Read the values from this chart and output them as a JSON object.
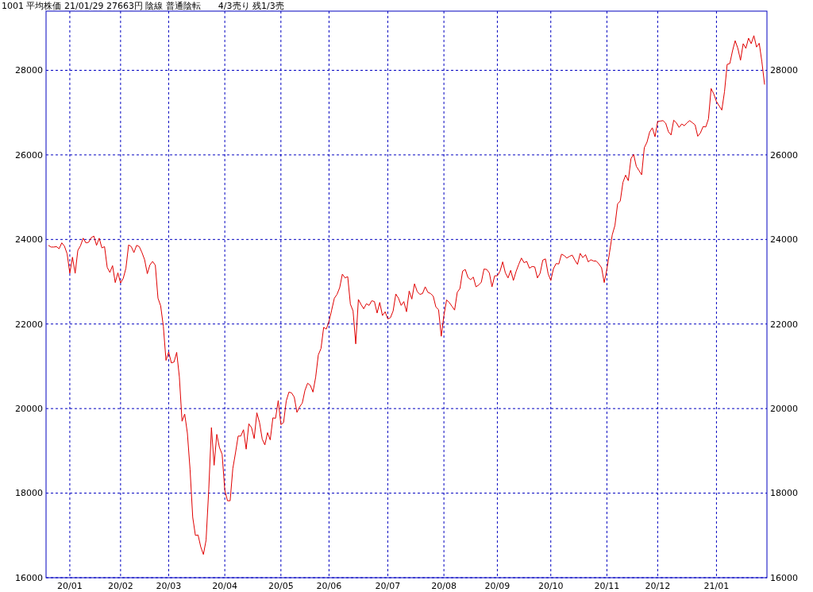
{
  "chart_data": {
    "type": "line",
    "title": "1001 平均株価 21/01/29 27663円 陰線 普通陰転　　4/3売り 残1/3売",
    "categories": [
      null,
      null,
      null,
      null,
      null,
      null,
      null,
      null,
      "20/01",
      null,
      null,
      null,
      null,
      null,
      null,
      null,
      null,
      null,
      null,
      null,
      null,
      null,
      null,
      null,
      null,
      null,
      null,
      "20/02",
      null,
      null,
      null,
      null,
      null,
      null,
      null,
      null,
      null,
      null,
      null,
      null,
      null,
      null,
      null,
      null,
      null,
      "20/03",
      null,
      null,
      null,
      null,
      null,
      null,
      null,
      null,
      null,
      null,
      null,
      null,
      null,
      null,
      null,
      null,
      null,
      null,
      null,
      null,
      "20/04",
      null,
      null,
      null,
      null,
      null,
      null,
      null,
      null,
      null,
      null,
      null,
      null,
      null,
      null,
      null,
      null,
      null,
      null,
      null,
      null,
      "20/05",
      null,
      null,
      null,
      null,
      null,
      null,
      null,
      null,
      null,
      null,
      null,
      null,
      null,
      null,
      null,
      null,
      null,
      "20/06",
      null,
      null,
      null,
      null,
      null,
      null,
      null,
      null,
      null,
      null,
      null,
      null,
      null,
      null,
      null,
      null,
      null,
      null,
      null,
      null,
      null,
      "20/07",
      null,
      null,
      null,
      null,
      null,
      null,
      null,
      null,
      null,
      null,
      null,
      null,
      null,
      null,
      null,
      null,
      null,
      null,
      null,
      null,
      "20/08",
      null,
      null,
      null,
      null,
      null,
      null,
      null,
      null,
      null,
      null,
      null,
      null,
      null,
      null,
      null,
      null,
      null,
      null,
      null,
      "20/09",
      null,
      null,
      null,
      null,
      null,
      null,
      null,
      null,
      null,
      null,
      null,
      null,
      null,
      null,
      null,
      null,
      null,
      null,
      null,
      "20/10",
      null,
      null,
      null,
      null,
      null,
      null,
      null,
      null,
      null,
      null,
      null,
      null,
      null,
      null,
      null,
      null,
      null,
      null,
      null,
      null,
      "20/11",
      null,
      null,
      null,
      null,
      null,
      null,
      null,
      null,
      null,
      null,
      null,
      null,
      null,
      null,
      null,
      null,
      null,
      null,
      "20/12",
      null,
      null,
      null,
      null,
      null,
      null,
      null,
      null,
      null,
      null,
      null,
      null,
      null,
      null,
      null,
      null,
      null,
      null,
      null,
      null,
      null,
      "21/01",
      null,
      null,
      null,
      null,
      null,
      null,
      null,
      null,
      null,
      null,
      null,
      null,
      null,
      null,
      null,
      null,
      null,
      null
    ],
    "series": [
      {
        "color": "#e00000",
        "values": [
          23860,
          23820,
          23820,
          23830,
          23780,
          23920,
          23840,
          23660,
          23200,
          23580,
          23200,
          23740,
          23850,
          24030,
          23920,
          23930,
          24040,
          24080,
          23860,
          24030,
          23800,
          23830,
          23340,
          23220,
          23380,
          22980,
          23210,
          22970,
          23080,
          23320,
          23870,
          23830,
          23690,
          23860,
          23830,
          23690,
          23520,
          23190,
          23400,
          23480,
          23390,
          22610,
          22430,
          21950,
          21140,
          21340,
          21080,
          21100,
          21330,
          20750,
          19700,
          19870,
          19420,
          18560,
          17430,
          17000,
          17010,
          16730,
          16550,
          16890,
          18090,
          19550,
          18660,
          19390,
          19080,
          18920,
          18070,
          17820,
          17820,
          18580,
          18950,
          19350,
          19350,
          19500,
          19040,
          19640,
          19550,
          19290,
          19900,
          19670,
          19280,
          19140,
          19430,
          19260,
          19780,
          19770,
          20190,
          19620,
          19670,
          20180,
          20390,
          20370,
          20270,
          19910,
          20040,
          20130,
          20430,
          20600,
          20550,
          20390,
          20740,
          21270,
          21420,
          21920,
          21880,
          22060,
          22330,
          22610,
          22700,
          22860,
          23180,
          23090,
          23120,
          22470,
          22310,
          21530,
          22580,
          22460,
          22360,
          22480,
          22440,
          22550,
          22530,
          22260,
          22510,
          22200,
          22290,
          22120,
          22150,
          22310,
          22710,
          22610,
          22440,
          22530,
          22290,
          22780,
          22590,
          22950,
          22770,
          22700,
          22720,
          22880,
          22750,
          22720,
          22660,
          22400,
          22340,
          21710,
          22200,
          22570,
          22510,
          22420,
          22330,
          22750,
          22840,
          23250,
          23290,
          23100,
          23050,
          23110,
          22880,
          22920,
          22990,
          23300,
          23290,
          23210,
          22880,
          23140,
          23140,
          23250,
          23470,
          23210,
          23090,
          23270,
          23030,
          23240,
          23410,
          23560,
          23450,
          23480,
          23320,
          23360,
          23350,
          23090,
          23200,
          23510,
          23540,
          23190,
          23030,
          23310,
          23430,
          23420,
          23650,
          23620,
          23560,
          23600,
          23630,
          23510,
          23410,
          23670,
          23570,
          23640,
          23470,
          23520,
          23490,
          23490,
          23420,
          23330,
          22980,
          23300,
          23700,
          24110,
          24330,
          24840,
          24910,
          25350,
          25520,
          25390,
          25910,
          26010,
          25730,
          25630,
          25530,
          26170,
          26300,
          26540,
          26640,
          26430,
          26790,
          26800,
          26810,
          26750,
          26550,
          26470,
          26820,
          26760,
          26650,
          26730,
          26690,
          26760,
          26810,
          26760,
          26710,
          26440,
          26520,
          26670,
          26660,
          26850,
          27570,
          27440,
          27260,
          27160,
          27060,
          27490,
          28140,
          28160,
          28460,
          28700,
          28520,
          28240,
          28630,
          28520,
          28760,
          28630,
          28820,
          28550,
          28640,
          28200,
          27663
        ]
      }
    ],
    "ylim": [
      16000,
      29400
    ],
    "yticks": [
      16000,
      18000,
      20000,
      22000,
      24000,
      26000,
      28000
    ],
    "y2lim": [
      16000,
      29400
    ],
    "y2ticks": [
      16000,
      18000,
      20000,
      22000,
      24000,
      26000,
      28000
    ],
    "grid": true,
    "line_style": "solid"
  }
}
